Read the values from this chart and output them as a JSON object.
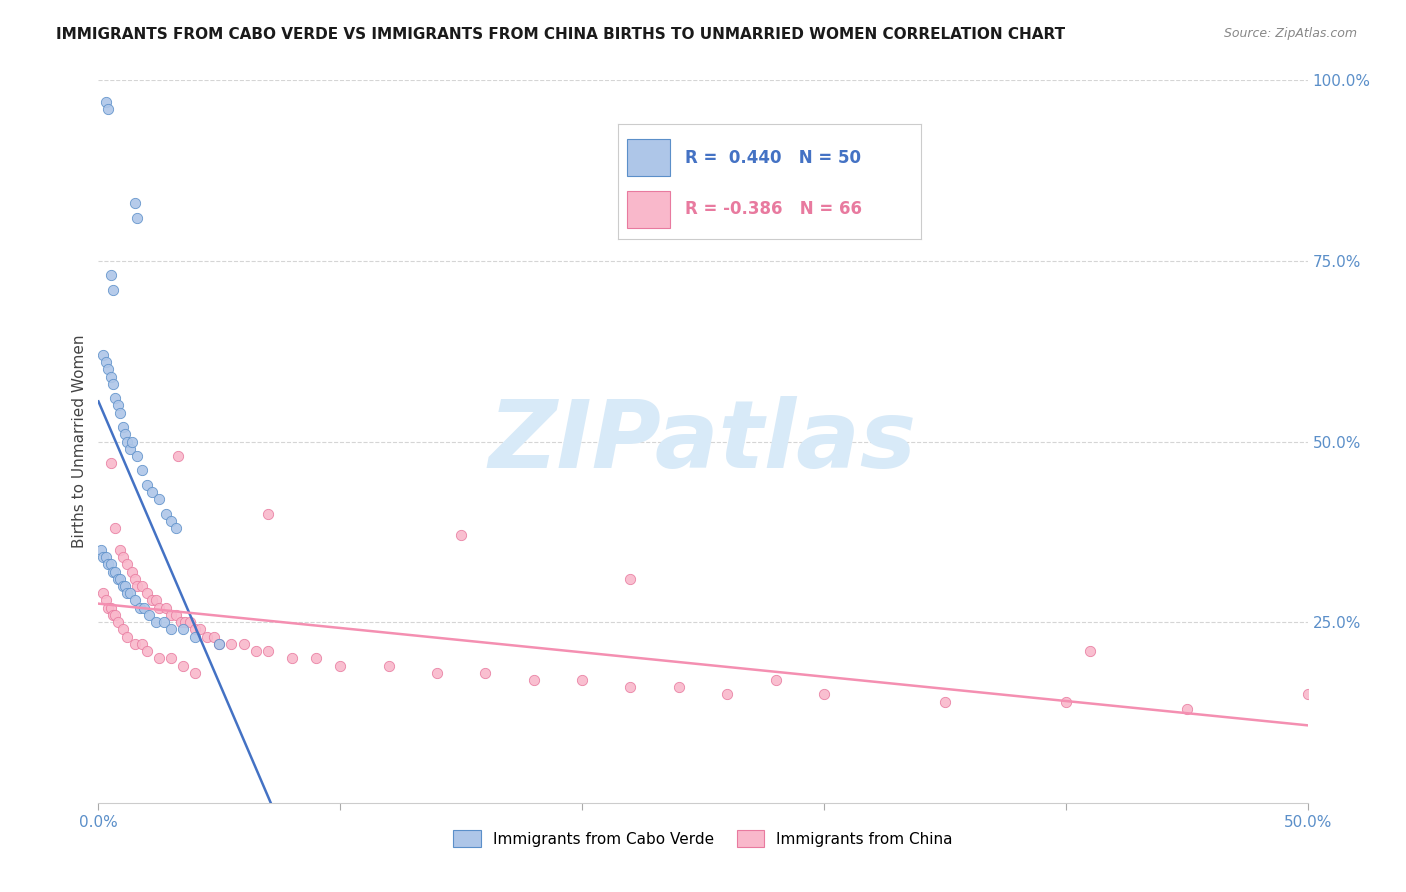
{
  "title": "IMMIGRANTS FROM CABO VERDE VS IMMIGRANTS FROM CHINA BIRTHS TO UNMARRIED WOMEN CORRELATION CHART",
  "source": "Source: ZipAtlas.com",
  "ylabel": "Births to Unmarried Women",
  "cabo_verde_R": 0.44,
  "cabo_verde_N": 50,
  "china_R": -0.386,
  "china_N": 66,
  "cabo_verde_color": "#aec6e8",
  "china_color": "#f9b8cb",
  "cabo_verde_edge_color": "#5b8fc9",
  "china_edge_color": "#e87a9f",
  "cabo_verde_line_color": "#4472c4",
  "china_line_color": "#f48fb1",
  "watermark": "ZIPatlas",
  "watermark_color": "#d8eaf8",
  "grid_color": "#d5d5d5",
  "title_color": "#1a1a1a",
  "source_color": "#888888",
  "tick_color": "#5b8fc9",
  "ylabel_color": "#444444",
  "xlim": [
    0.0,
    0.5
  ],
  "ylim": [
    0.0,
    1.0
  ],
  "right_yticks": [
    0.25,
    0.5,
    0.75,
    1.0
  ],
  "right_yticklabels": [
    "25.0%",
    "50.0%",
    "75.0%",
    "100.0%"
  ],
  "x_cabo_verde": [
    0.003,
    0.004,
    0.015,
    0.016,
    0.005,
    0.006,
    0.002,
    0.003,
    0.004,
    0.005,
    0.006,
    0.007,
    0.008,
    0.009,
    0.01,
    0.011,
    0.012,
    0.013,
    0.014,
    0.016,
    0.018,
    0.02,
    0.022,
    0.025,
    0.028,
    0.03,
    0.032,
    0.001,
    0.002,
    0.003,
    0.004,
    0.005,
    0.006,
    0.007,
    0.008,
    0.009,
    0.01,
    0.011,
    0.012,
    0.013,
    0.015,
    0.017,
    0.019,
    0.021,
    0.024,
    0.027,
    0.03,
    0.035,
    0.04,
    0.05
  ],
  "y_cabo_verde": [
    0.97,
    0.96,
    0.83,
    0.81,
    0.73,
    0.71,
    0.62,
    0.61,
    0.6,
    0.59,
    0.58,
    0.56,
    0.55,
    0.54,
    0.52,
    0.51,
    0.5,
    0.49,
    0.5,
    0.48,
    0.46,
    0.44,
    0.43,
    0.42,
    0.4,
    0.39,
    0.38,
    0.35,
    0.34,
    0.34,
    0.33,
    0.33,
    0.32,
    0.32,
    0.31,
    0.31,
    0.3,
    0.3,
    0.29,
    0.29,
    0.28,
    0.27,
    0.27,
    0.26,
    0.25,
    0.25,
    0.24,
    0.24,
    0.23,
    0.22
  ],
  "x_china": [
    0.005,
    0.007,
    0.009,
    0.01,
    0.012,
    0.014,
    0.015,
    0.016,
    0.018,
    0.02,
    0.022,
    0.024,
    0.025,
    0.028,
    0.03,
    0.032,
    0.034,
    0.036,
    0.038,
    0.04,
    0.042,
    0.045,
    0.048,
    0.05,
    0.055,
    0.06,
    0.065,
    0.07,
    0.08,
    0.09,
    0.1,
    0.12,
    0.14,
    0.16,
    0.18,
    0.2,
    0.22,
    0.24,
    0.26,
    0.3,
    0.35,
    0.4,
    0.45,
    0.002,
    0.003,
    0.004,
    0.005,
    0.006,
    0.007,
    0.008,
    0.01,
    0.012,
    0.015,
    0.018,
    0.02,
    0.025,
    0.03,
    0.035,
    0.04,
    0.033,
    0.07,
    0.15,
    0.22,
    0.28,
    0.41,
    0.5
  ],
  "y_china": [
    0.47,
    0.38,
    0.35,
    0.34,
    0.33,
    0.32,
    0.31,
    0.3,
    0.3,
    0.29,
    0.28,
    0.28,
    0.27,
    0.27,
    0.26,
    0.26,
    0.25,
    0.25,
    0.25,
    0.24,
    0.24,
    0.23,
    0.23,
    0.22,
    0.22,
    0.22,
    0.21,
    0.21,
    0.2,
    0.2,
    0.19,
    0.19,
    0.18,
    0.18,
    0.17,
    0.17,
    0.16,
    0.16,
    0.15,
    0.15,
    0.14,
    0.14,
    0.13,
    0.29,
    0.28,
    0.27,
    0.27,
    0.26,
    0.26,
    0.25,
    0.24,
    0.23,
    0.22,
    0.22,
    0.21,
    0.2,
    0.2,
    0.19,
    0.18,
    0.48,
    0.4,
    0.37,
    0.31,
    0.17,
    0.21,
    0.15
  ]
}
